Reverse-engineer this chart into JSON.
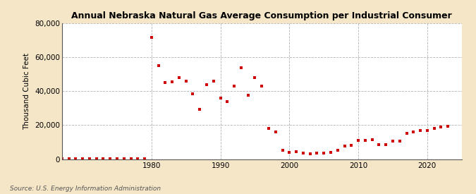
{
  "title": "Annual Nebraska Natural Gas Average Consumption per Industrial Consumer",
  "ylabel": "Thousand Cubic Feet",
  "source": "Source: U.S. Energy Information Administration",
  "figure_bg_color": "#f5e6c8",
  "plot_bg_color": "#ffffff",
  "marker_color": "#cc0000",
  "marker": "s",
  "markersize": 3.5,
  "xlim": [
    1967,
    2025
  ],
  "ylim": [
    0,
    80000
  ],
  "yticks": [
    0,
    20000,
    40000,
    60000,
    80000
  ],
  "xticks": [
    1980,
    1990,
    2000,
    2010,
    2020
  ],
  "years": [
    1967,
    1968,
    1969,
    1970,
    1971,
    1972,
    1973,
    1974,
    1975,
    1976,
    1977,
    1978,
    1979,
    1980,
    1981,
    1982,
    1983,
    1984,
    1985,
    1986,
    1987,
    1988,
    1989,
    1990,
    1991,
    1992,
    1993,
    1994,
    1995,
    1996,
    1997,
    1998,
    1999,
    2000,
    2001,
    2002,
    2003,
    2004,
    2005,
    2006,
    2007,
    2008,
    2009,
    2010,
    2011,
    2012,
    2013,
    2014,
    2015,
    2016,
    2017,
    2018,
    2019,
    2020,
    2021,
    2022,
    2023
  ],
  "values": [
    200,
    200,
    200,
    200,
    200,
    200,
    200,
    200,
    200,
    200,
    200,
    200,
    200,
    71500,
    55000,
    45000,
    45500,
    48000,
    46000,
    38500,
    29500,
    44000,
    46000,
    36000,
    34000,
    43000,
    54000,
    37500,
    48000,
    43000,
    18000,
    16000,
    5000,
    4000,
    4500,
    3500,
    3000,
    3500,
    3500,
    4000,
    5000,
    7500,
    8000,
    11000,
    11000,
    11500,
    8500,
    8500,
    10500,
    10500,
    15000,
    16000,
    17000,
    17000,
    18000,
    19000,
    19500
  ]
}
